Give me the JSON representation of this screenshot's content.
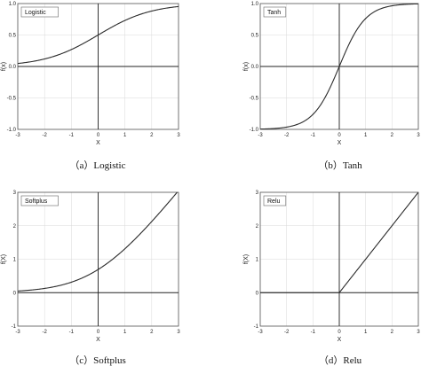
{
  "chart_data": [
    {
      "type": "line",
      "legend": "Logistic",
      "function": "logistic",
      "xlabel": "X",
      "ylabel": "f(x)",
      "xlim": [
        -3,
        3
      ],
      "ylim": [
        -1.0,
        1.0
      ],
      "xticks": [
        -3,
        -2,
        -1,
        0,
        1,
        2,
        3
      ],
      "yticks": [
        "-1.0",
        "-0.5",
        "0.0",
        "0.5",
        "1.0"
      ],
      "x": [
        -3,
        -2.5,
        -2,
        -1.5,
        -1,
        -0.5,
        0,
        0.5,
        1,
        1.5,
        2,
        2.5,
        3
      ],
      "values": [
        0.047,
        0.076,
        0.119,
        0.182,
        0.269,
        0.378,
        0.5,
        0.622,
        0.731,
        0.818,
        0.881,
        0.924,
        0.953
      ],
      "grid": true,
      "legend_position": "top-left",
      "caption": "（a）Logistic"
    },
    {
      "type": "line",
      "legend": "Tanh",
      "function": "tanh",
      "xlabel": "X",
      "ylabel": "f(x)",
      "xlim": [
        -3,
        3
      ],
      "ylim": [
        -1.0,
        1.0
      ],
      "xticks": [
        -3,
        -2,
        -1,
        0,
        1,
        2,
        3
      ],
      "yticks": [
        "-1.0",
        "-0.5",
        "0.0",
        "0.5",
        "1.0"
      ],
      "x": [
        -3,
        -2.5,
        -2,
        -1.5,
        -1,
        -0.5,
        0,
        0.5,
        1,
        1.5,
        2,
        2.5,
        3
      ],
      "values": [
        -0.995,
        -0.987,
        -0.964,
        -0.905,
        -0.762,
        -0.462,
        0,
        0.462,
        0.762,
        0.905,
        0.964,
        0.987,
        0.995
      ],
      "grid": true,
      "legend_position": "top-left",
      "caption": "（b）Tanh"
    },
    {
      "type": "line",
      "legend": "Softplus",
      "function": "softplus",
      "xlabel": "X",
      "ylabel": "f(X)",
      "xlim": [
        -3,
        3
      ],
      "ylim": [
        -1,
        3
      ],
      "xticks": [
        -3,
        -2,
        -1,
        0,
        1,
        2,
        3
      ],
      "yticks": [
        "-1",
        "0",
        "1",
        "2",
        "3"
      ],
      "x": [
        -3,
        -2.5,
        -2,
        -1.5,
        -1,
        -0.5,
        0,
        0.5,
        1,
        1.5,
        2,
        2.5,
        3
      ],
      "values": [
        0.049,
        0.079,
        0.127,
        0.201,
        0.313,
        0.474,
        0.693,
        0.974,
        1.313,
        1.701,
        2.127,
        2.579,
        3.049
      ],
      "grid": true,
      "legend_position": "top-left",
      "caption": "（c）Softplus"
    },
    {
      "type": "line",
      "legend": "Relu",
      "function": "relu",
      "xlabel": "X",
      "ylabel": "f(X)",
      "xlim": [
        -3,
        3
      ],
      "ylim": [
        -1,
        3
      ],
      "xticks": [
        -3,
        -2,
        -1,
        0,
        1,
        2,
        3
      ],
      "yticks": [
        "-1",
        "0",
        "1",
        "2",
        "3"
      ],
      "x": [
        -3,
        -2,
        -1,
        0,
        1,
        2,
        3
      ],
      "values": [
        0,
        0,
        0,
        0,
        1,
        2,
        3
      ],
      "grid": true,
      "legend_position": "top-left",
      "caption": "（d）Relu"
    }
  ],
  "colors": {
    "line": "#2b2b2b",
    "axis": "#222222",
    "grid": "#d9d9d9",
    "frame": "#555555"
  }
}
